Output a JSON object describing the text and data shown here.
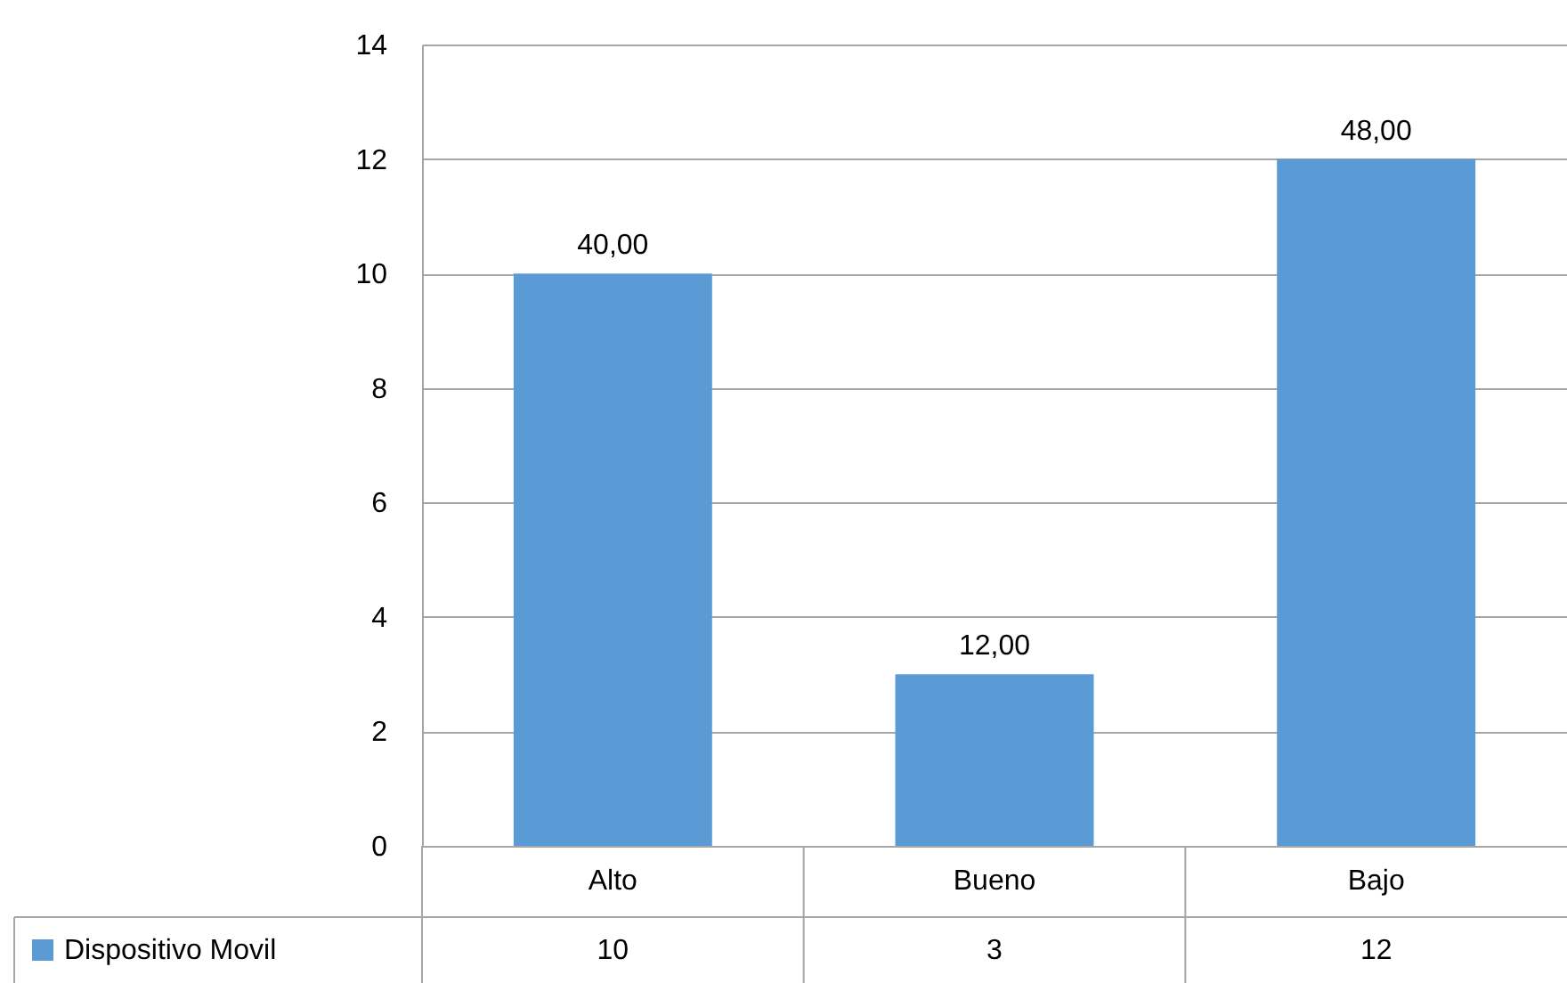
{
  "chart_data": {
    "type": "bar",
    "categories": [
      "Alto",
      "Bueno",
      "Bajo"
    ],
    "series": [
      {
        "name": "Dispositivo Movil",
        "color": "#5b9bd5",
        "values": [
          10,
          3,
          12
        ]
      }
    ],
    "annotations": [
      {
        "text": "40,00",
        "x": "Alto",
        "y": 10
      },
      {
        "text": "12,00",
        "x": "Bueno",
        "y": 3
      },
      {
        "text": "48,00",
        "x": "Bajo",
        "y": 12
      }
    ],
    "data_labels": true,
    "ylim": [
      0,
      14
    ],
    "yticks": [
      0,
      2,
      4,
      6,
      8,
      10,
      12,
      14
    ],
    "grid": "y",
    "legend": "bottom left"
  }
}
